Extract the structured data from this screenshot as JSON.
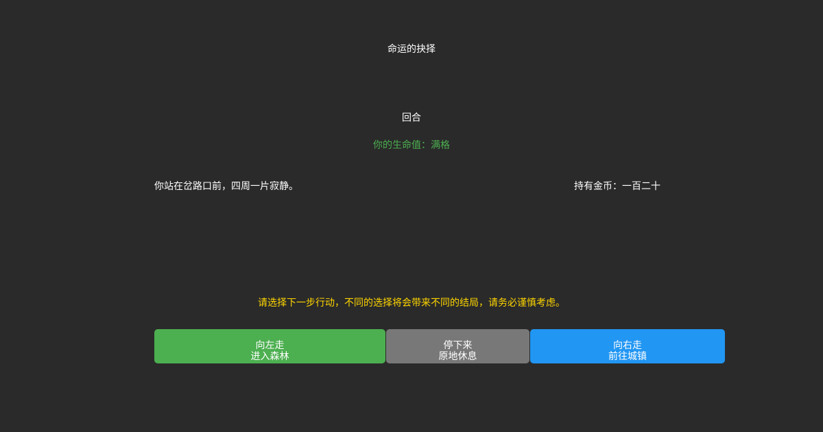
{
  "title": "命运的抉择",
  "round": "回合",
  "status": "你的生命值：满格",
  "description": "你站在岔路口前，四周一片寂静。",
  "gold": "持有金币：一百二十",
  "hint": "请选择下一步行动，不同的选择将会带来不同的结局，请务必谨慎考虑。",
  "colors": {
    "background": "#2a2a2a",
    "status": "#4caf50",
    "hint": "#ffd600",
    "choice1": "#4caf50",
    "choice2": "#787878",
    "choice3": "#2196f3"
  },
  "choices": [
    {
      "line1": "向左走",
      "line2": "进入森林"
    },
    {
      "line1": "停下来",
      "line2": "原地休息"
    },
    {
      "line1": "向右走",
      "line2": "前往城镇"
    }
  ]
}
